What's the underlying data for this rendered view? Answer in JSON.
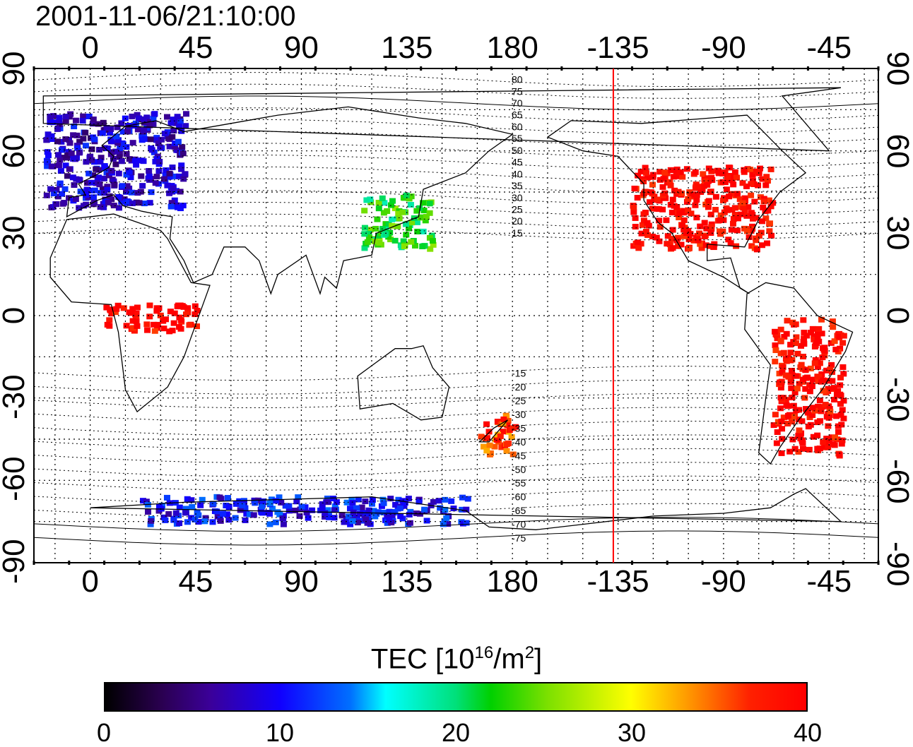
{
  "title": "2001-11-06/21:10:00",
  "longitude_ticks": [
    "0",
    "45",
    "90",
    "135",
    "180",
    "-135",
    "-90",
    "-45"
  ],
  "latitude_ticks": [
    "90",
    "60",
    "30",
    "0",
    "-30",
    "-60",
    "-90"
  ],
  "magnetic_latitude_labels": [
    "80",
    "75",
    "70",
    "65",
    "60",
    "55",
    "50",
    "45",
    "40",
    "35",
    "30",
    "25",
    "20",
    "15",
    "-15",
    "-20",
    "-25",
    "-30",
    "-35",
    "-40",
    "-45",
    "-50",
    "-55",
    "-60",
    "-65",
    "-70",
    "-75"
  ],
  "colorbar": {
    "title_prefix": "TEC  [10",
    "title_exp1": "16",
    "title_mid": "/m",
    "title_exp2": "2",
    "title_suffix": "]",
    "ticks": [
      "0",
      "10",
      "20",
      "30",
      "40"
    ],
    "range": [
      0,
      40
    ],
    "colors": [
      "#000000",
      "#3b0099",
      "#1000ff",
      "#00ffff",
      "#00d000",
      "#ffff00",
      "#ff0000"
    ]
  },
  "meridian_marker": {
    "longitude": -137,
    "color": "#ff0000"
  },
  "tec_regions": [
    {
      "name": "europe",
      "lon": [
        -20,
        40
      ],
      "lat": [
        40,
        75
      ],
      "tec": 8
    },
    {
      "name": "north-america",
      "lon": [
        -130,
        -70
      ],
      "lat": [
        25,
        55
      ],
      "tec": 40
    },
    {
      "name": "east-asia",
      "lon": [
        115,
        145
      ],
      "lat": [
        25,
        45
      ],
      "tec": 22
    },
    {
      "name": "south-america",
      "lon": [
        -70,
        -40
      ],
      "lat": [
        -50,
        0
      ],
      "tec": 40
    },
    {
      "name": "africa-central",
      "lon": [
        5,
        45
      ],
      "lat": [
        -5,
        5
      ],
      "tec": 40
    },
    {
      "name": "new-zealand",
      "lon": [
        165,
        180
      ],
      "lat": [
        -50,
        -35
      ],
      "tec": 36
    },
    {
      "name": "antarctica-ring",
      "lon": [
        20,
        160
      ],
      "lat": [
        -75,
        -65
      ],
      "tec": 10
    }
  ]
}
